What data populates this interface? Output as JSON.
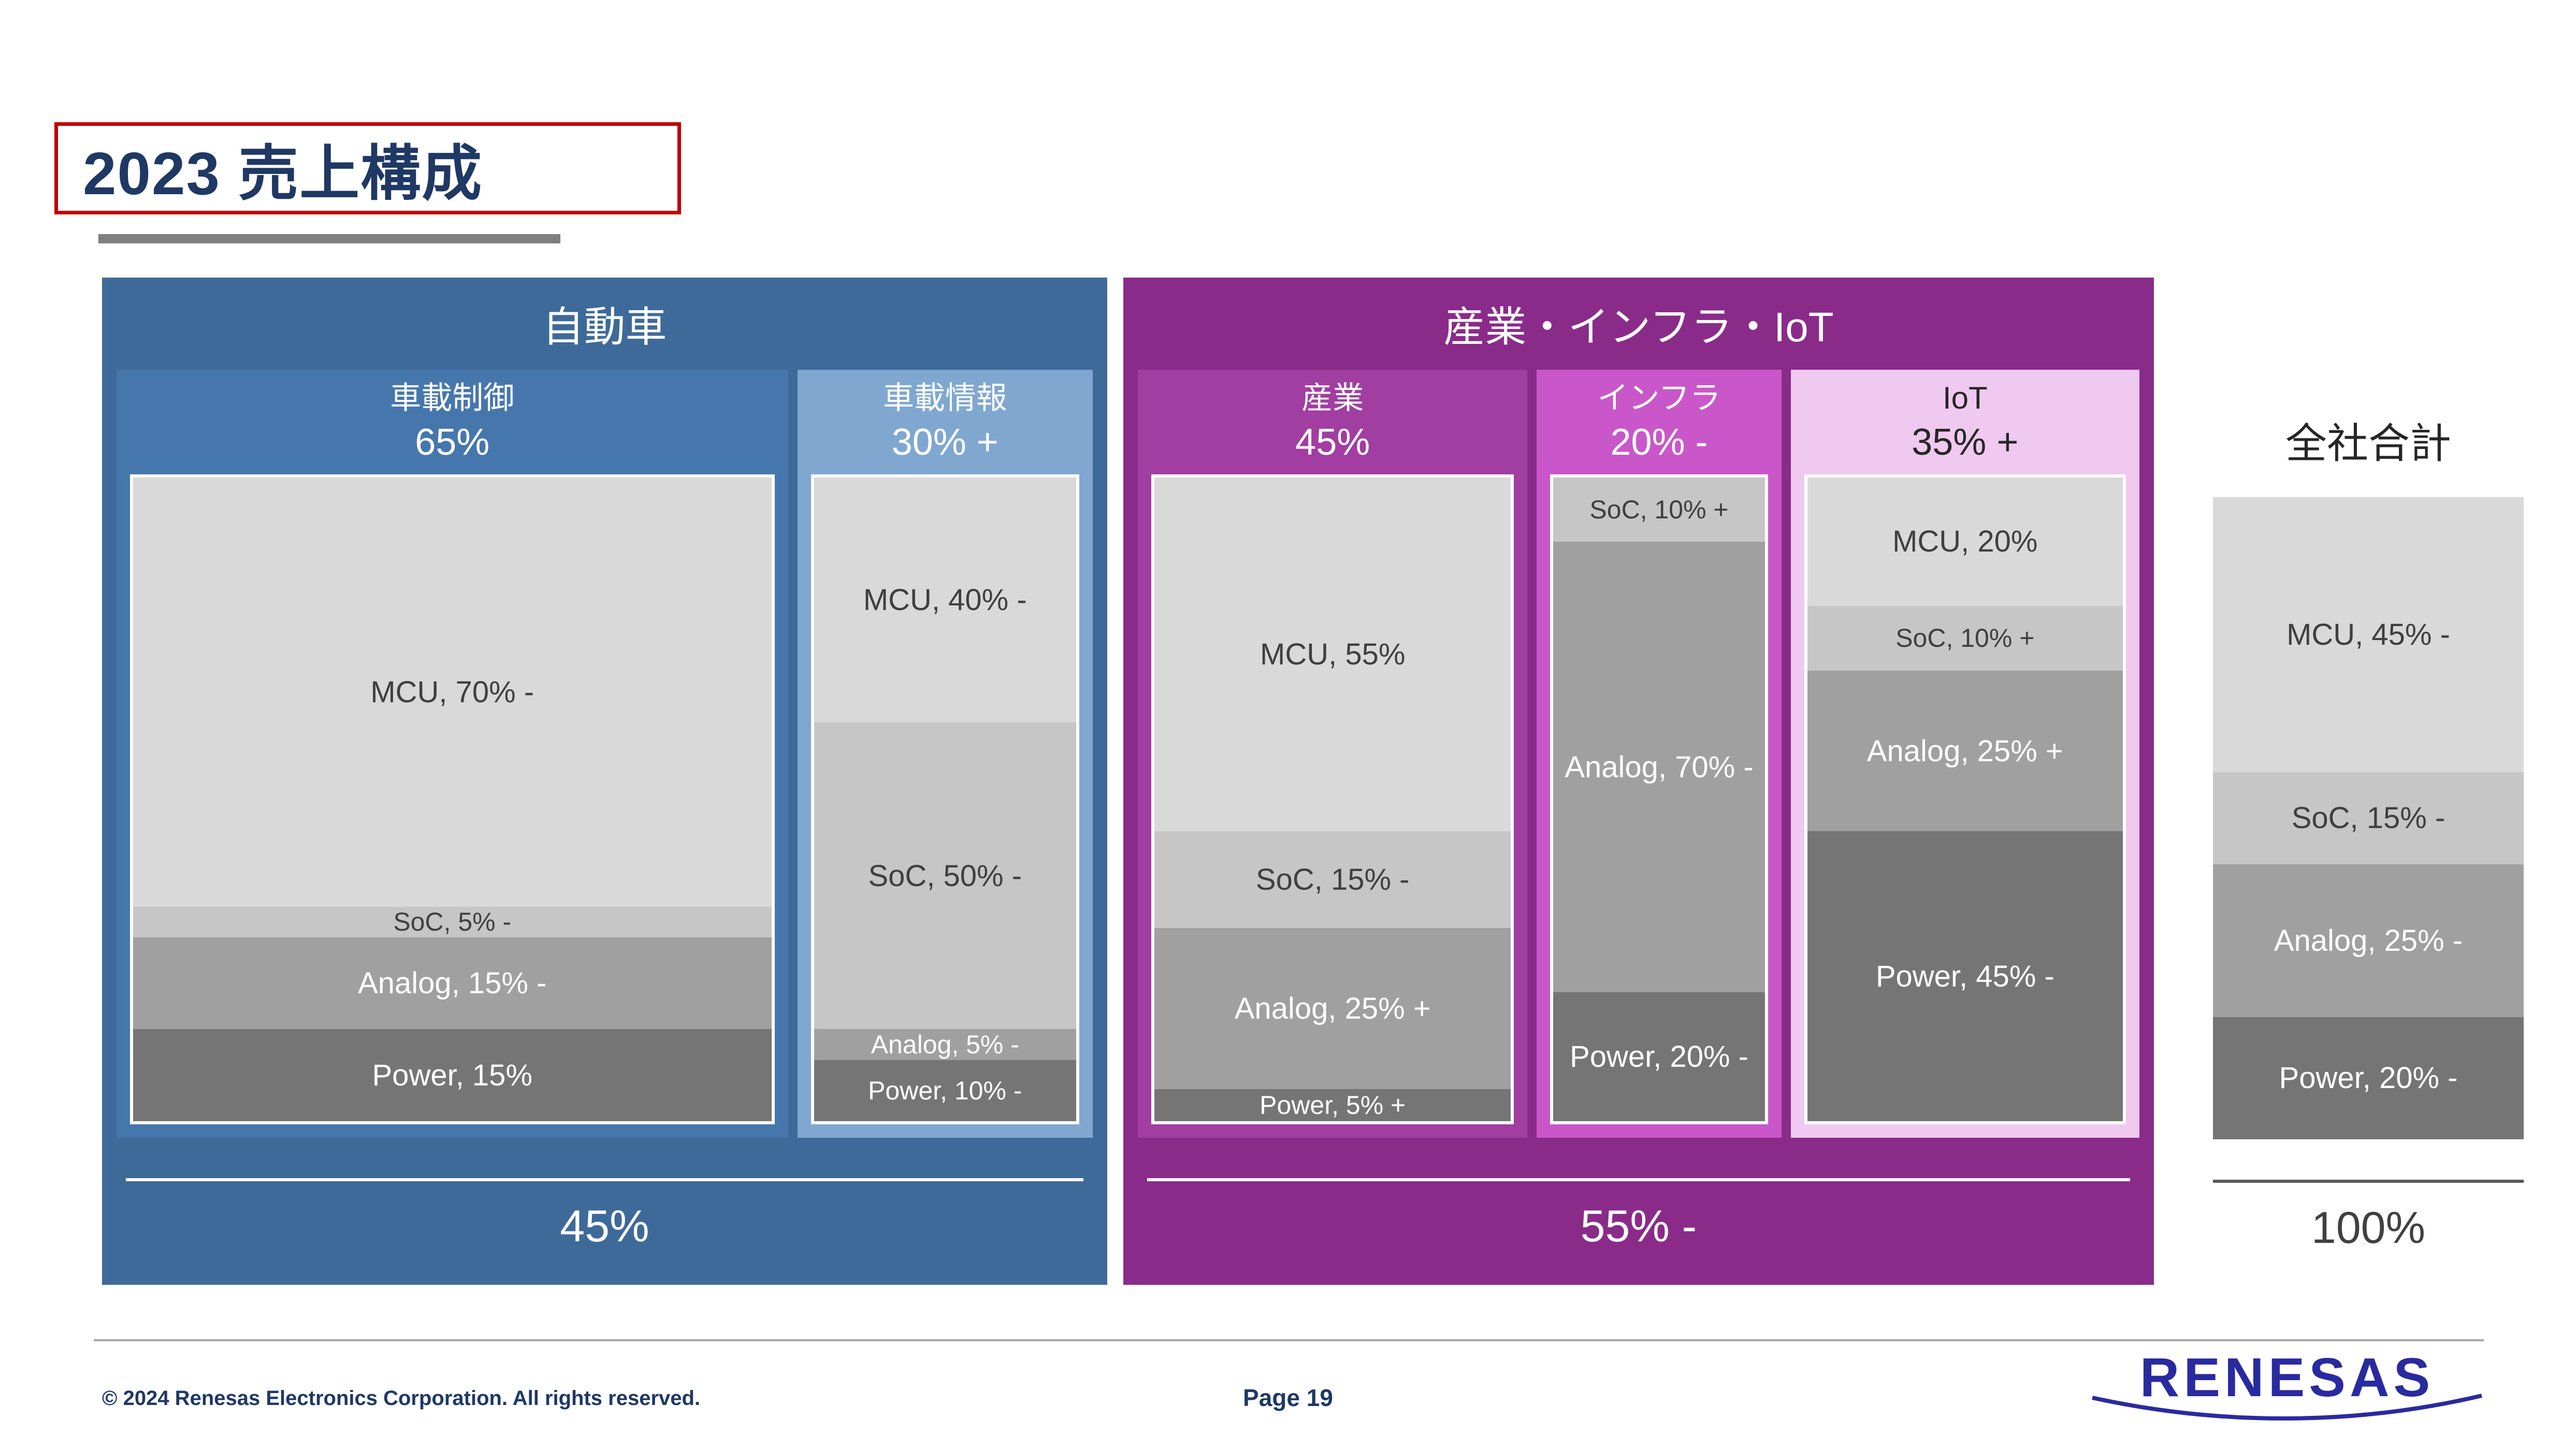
{
  "title": "2023 売上構成",
  "footer": {
    "copyright": "© 2024 Renesas Electronics Corporation. All rights reserved.",
    "page": "Page 19",
    "logo": "RENESAS"
  },
  "colors": {
    "navy": "#1F3864",
    "red": "#C00000",
    "logo_blue": "#2A2AA0",
    "auto_panel": "#3E6A99",
    "auto_col1": "#4677AC",
    "auto_col2": "#7FA7D0",
    "ind_panel": "#8A2B8A",
    "ind_col1": "#A23DA2",
    "ind_col2": "#C957C9",
    "ind_col3": "#EFC9F0",
    "seg_mcu": "#D9D9D9",
    "seg_soc": "#C6C6C6",
    "seg_analog": "#A0A0A0",
    "seg_power": "#757575"
  },
  "chart_data": {
    "type": "bar",
    "title": "2023 売上構成",
    "legend_position": "none",
    "groups": [
      {
        "name": "自動車",
        "total_label": "45%",
        "columns": [
          {
            "label": "車載制御",
            "share": "65%",
            "segments": [
              {
                "name": "MCU",
                "label": "MCU, 70% -",
                "value": 70
              },
              {
                "name": "SoC",
                "label": "SoC, 5% -",
                "value": 5
              },
              {
                "name": "Analog",
                "label": "Analog, 15% -",
                "value": 15
              },
              {
                "name": "Power",
                "label": "Power, 15%",
                "value": 15
              }
            ]
          },
          {
            "label": "車載情報",
            "share": "30% +",
            "segments": [
              {
                "name": "MCU",
                "label": "MCU, 40% -",
                "value": 40
              },
              {
                "name": "SoC",
                "label": "SoC, 50% -",
                "value": 50
              },
              {
                "name": "Analog",
                "label": "Analog, 5% -",
                "value": 5
              },
              {
                "name": "Power",
                "label": "Power, 10% -",
                "value": 10
              }
            ]
          }
        ]
      },
      {
        "name": "産業・インフラ・IoT",
        "total_label": "55% -",
        "columns": [
          {
            "label": "産業",
            "share": "45%",
            "segments": [
              {
                "name": "MCU",
                "label": "MCU, 55%",
                "value": 55
              },
              {
                "name": "SoC",
                "label": "SoC, 15% -",
                "value": 15
              },
              {
                "name": "Analog",
                "label": "Analog, 25% +",
                "value": 25
              },
              {
                "name": "Power",
                "label": "Power, 5% +",
                "value": 5
              }
            ]
          },
          {
            "label": "インフラ",
            "share": "20% -",
            "segments": [
              {
                "name": "SoC",
                "label": "SoC, 10% +",
                "value": 10
              },
              {
                "name": "Analog",
                "label": "Analog, 70% -",
                "value": 70
              },
              {
                "name": "Power",
                "label": "Power, 20% -",
                "value": 20
              }
            ]
          },
          {
            "label": "IoT",
            "share": "35% +",
            "segments": [
              {
                "name": "MCU",
                "label": "MCU, 20%",
                "value": 20
              },
              {
                "name": "SoC",
                "label": "SoC, 10% +",
                "value": 10
              },
              {
                "name": "Analog",
                "label": "Analog, 25% +",
                "value": 25
              },
              {
                "name": "Power",
                "label": "Power, 45% -",
                "value": 45
              }
            ]
          }
        ]
      }
    ],
    "total_column": {
      "name": "全社合計",
      "total_label": "100%",
      "segments": [
        {
          "name": "MCU",
          "label": "MCU, 45% -",
          "value": 45
        },
        {
          "name": "SoC",
          "label": "SoC, 15% -",
          "value": 15
        },
        {
          "name": "Analog",
          "label": "Analog, 25% -",
          "value": 25
        },
        {
          "name": "Power",
          "label": "Power, 20% -",
          "value": 20
        }
      ]
    }
  }
}
